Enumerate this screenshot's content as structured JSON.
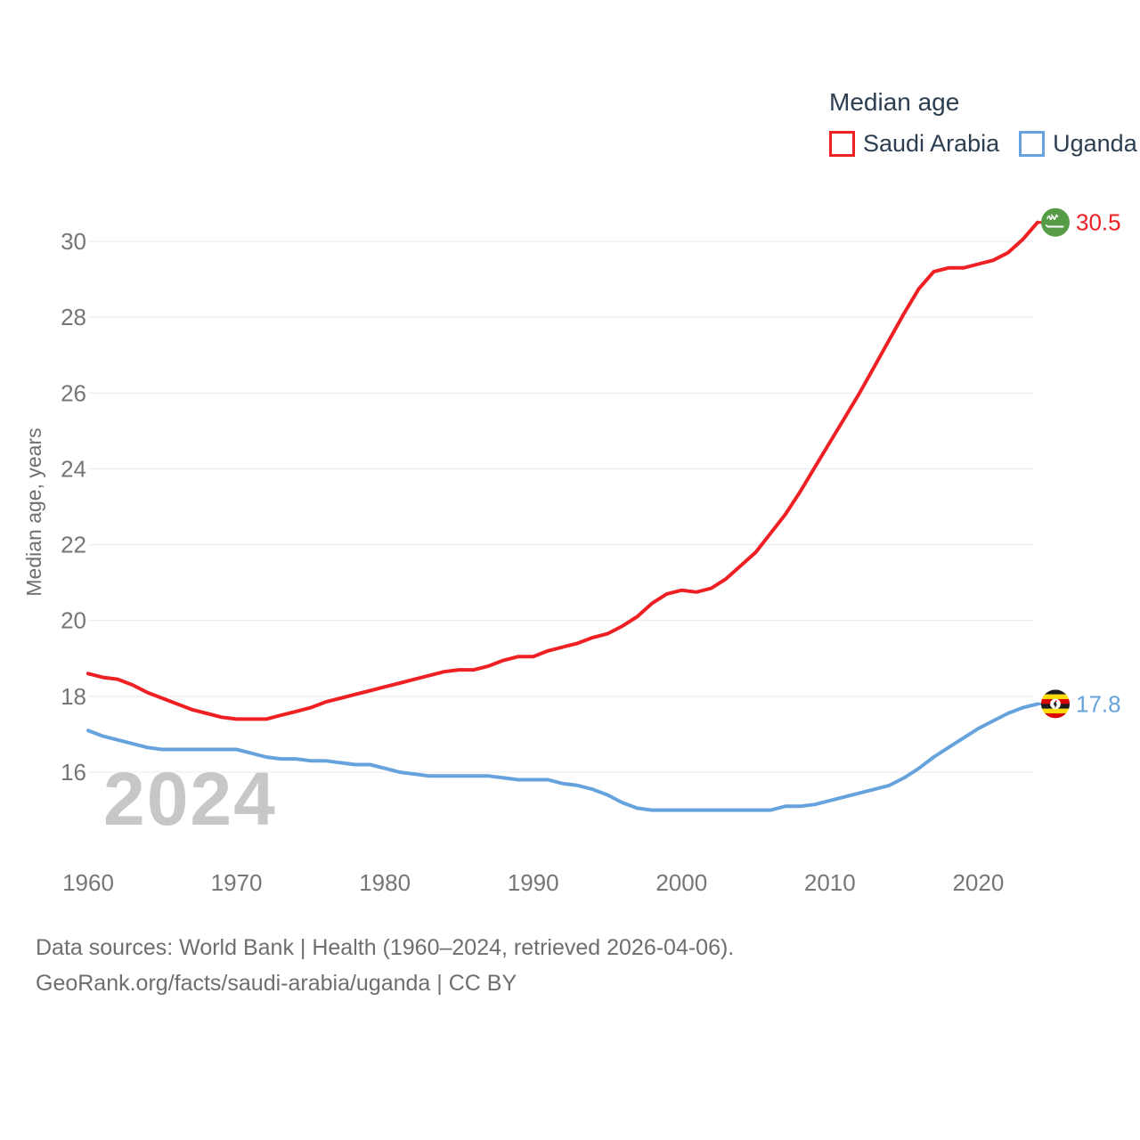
{
  "legend": {
    "title": "Median age",
    "items": [
      {
        "label": "Saudi Arabia",
        "color": "#ee2024"
      },
      {
        "label": "Uganda",
        "color": "#66a3dd"
      }
    ]
  },
  "watermark": "2024",
  "footer": {
    "line1": "Data sources: World Bank | Health (1960–2024, retrieved 2026-04-06).",
    "line2": "GeoRank.org/facts/saudi-arabia/uganda | CC BY"
  },
  "chart_data": {
    "type": "line",
    "title": "Median age",
    "xlabel": "",
    "ylabel": "Median age, years",
    "ylim": [
      14.6,
      31.3
    ],
    "xlim": [
      1960,
      2024
    ],
    "grid": "horizontal",
    "legend_position": "top-right",
    "yticks": [
      16,
      18,
      20,
      22,
      24,
      26,
      28,
      30
    ],
    "xticks": [
      1960,
      1970,
      1980,
      1990,
      2000,
      2010,
      2020
    ],
    "years": [
      1960,
      1961,
      1962,
      1963,
      1964,
      1965,
      1966,
      1967,
      1968,
      1969,
      1970,
      1971,
      1972,
      1973,
      1974,
      1975,
      1976,
      1977,
      1978,
      1979,
      1980,
      1981,
      1982,
      1983,
      1984,
      1985,
      1986,
      1987,
      1988,
      1989,
      1990,
      1991,
      1992,
      1993,
      1994,
      1995,
      1996,
      1997,
      1998,
      1999,
      2000,
      2001,
      2002,
      2003,
      2004,
      2005,
      2006,
      2007,
      2008,
      2009,
      2010,
      2011,
      2012,
      2013,
      2014,
      2015,
      2016,
      2017,
      2018,
      2019,
      2020,
      2021,
      2022,
      2023,
      2024
    ],
    "series": [
      {
        "name": "Saudi Arabia",
        "color": "#ee2024",
        "end_label": "30.5",
        "flag": "saudi-arabia",
        "values": [
          18.6,
          18.5,
          18.45,
          18.3,
          18.1,
          17.95,
          17.8,
          17.65,
          17.55,
          17.45,
          17.4,
          17.4,
          17.4,
          17.5,
          17.6,
          17.7,
          17.85,
          17.95,
          18.05,
          18.15,
          18.25,
          18.35,
          18.45,
          18.55,
          18.65,
          18.7,
          18.7,
          18.8,
          18.95,
          19.05,
          19.05,
          19.2,
          19.3,
          19.4,
          19.55,
          19.65,
          19.85,
          20.1,
          20.45,
          20.7,
          20.8,
          20.75,
          20.85,
          21.1,
          21.45,
          21.8,
          22.3,
          22.8,
          23.4,
          24.05,
          24.7,
          25.35,
          26.0,
          26.7,
          27.4,
          28.1,
          28.75,
          29.2,
          29.3,
          29.3,
          29.4,
          29.5,
          29.7,
          30.05,
          30.5
        ]
      },
      {
        "name": "Uganda",
        "color": "#66a3dd",
        "end_label": "17.8",
        "flag": "uganda",
        "values": [
          17.1,
          16.95,
          16.85,
          16.75,
          16.65,
          16.6,
          16.6,
          16.6,
          16.6,
          16.6,
          16.6,
          16.5,
          16.4,
          16.35,
          16.35,
          16.3,
          16.3,
          16.25,
          16.2,
          16.2,
          16.1,
          16.0,
          15.95,
          15.9,
          15.9,
          15.9,
          15.9,
          15.9,
          15.85,
          15.8,
          15.8,
          15.8,
          15.7,
          15.65,
          15.55,
          15.4,
          15.2,
          15.05,
          15.0,
          15.0,
          15.0,
          15.0,
          15.0,
          15.0,
          15.0,
          15.0,
          15.0,
          15.1,
          15.1,
          15.15,
          15.25,
          15.35,
          15.45,
          15.55,
          15.65,
          15.85,
          16.1,
          16.4,
          16.65,
          16.9,
          17.15,
          17.35,
          17.55,
          17.7,
          17.8
        ]
      }
    ]
  }
}
